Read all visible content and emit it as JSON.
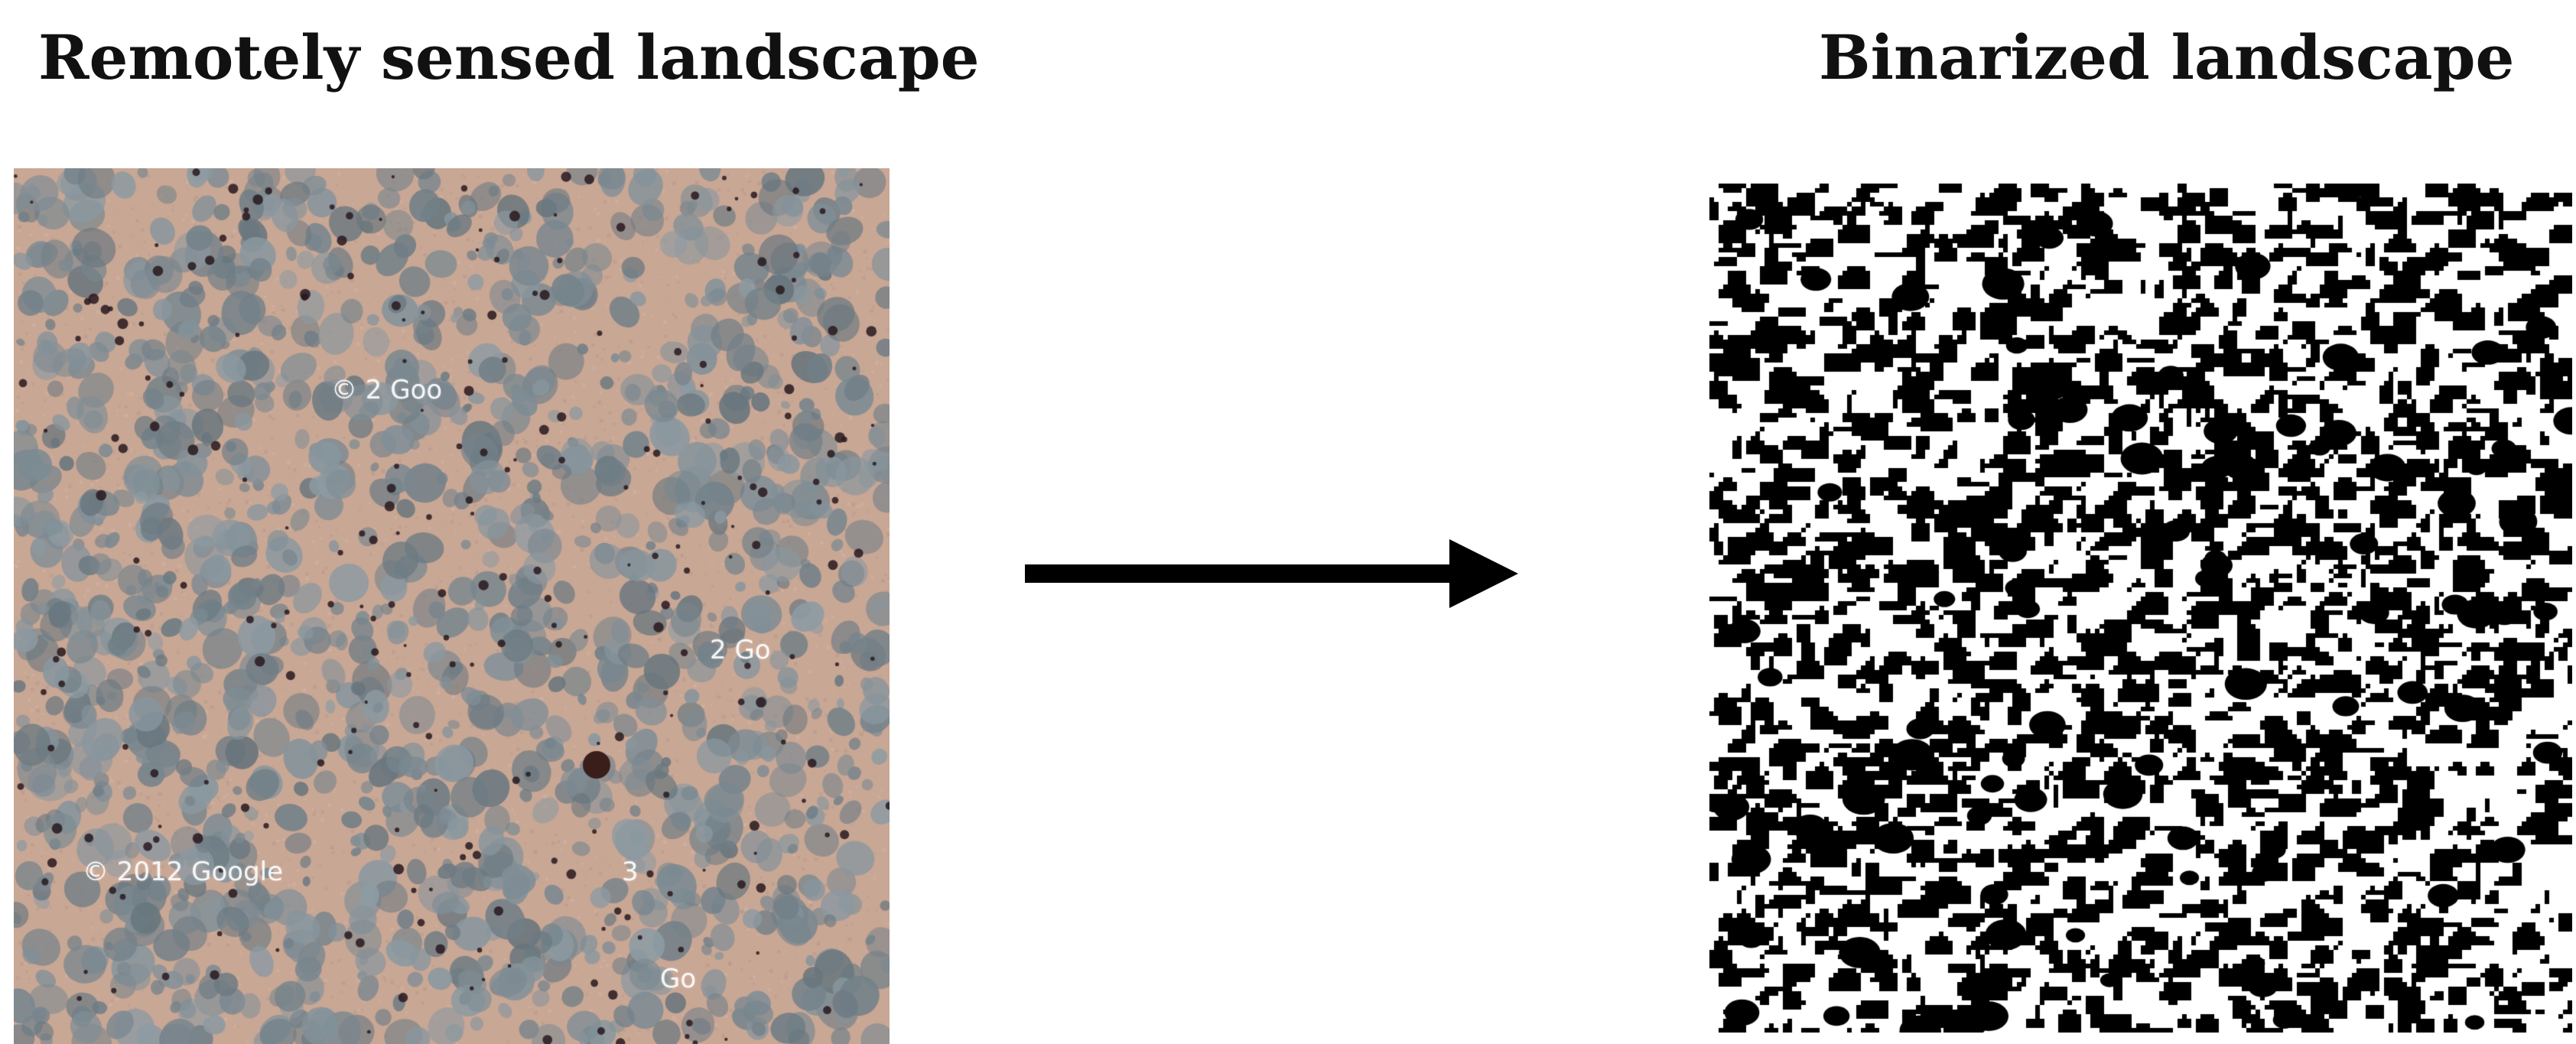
{
  "titles": {
    "left": "Remotely sensed landscape",
    "right": "Binarized landscape"
  },
  "watermarks": [
    "© 2 Goo",
    "2 Go",
    "© 2012 Google",
    "3",
    "Go"
  ],
  "colors": {
    "soil": "#c9a795",
    "shrub": "#7e8a90",
    "dark": "#3a1e1a",
    "binary_fg": "#000000",
    "binary_bg": "#ffffff",
    "arrow": "#000000"
  },
  "icons": {
    "arrow": "right-arrow-icon"
  }
}
